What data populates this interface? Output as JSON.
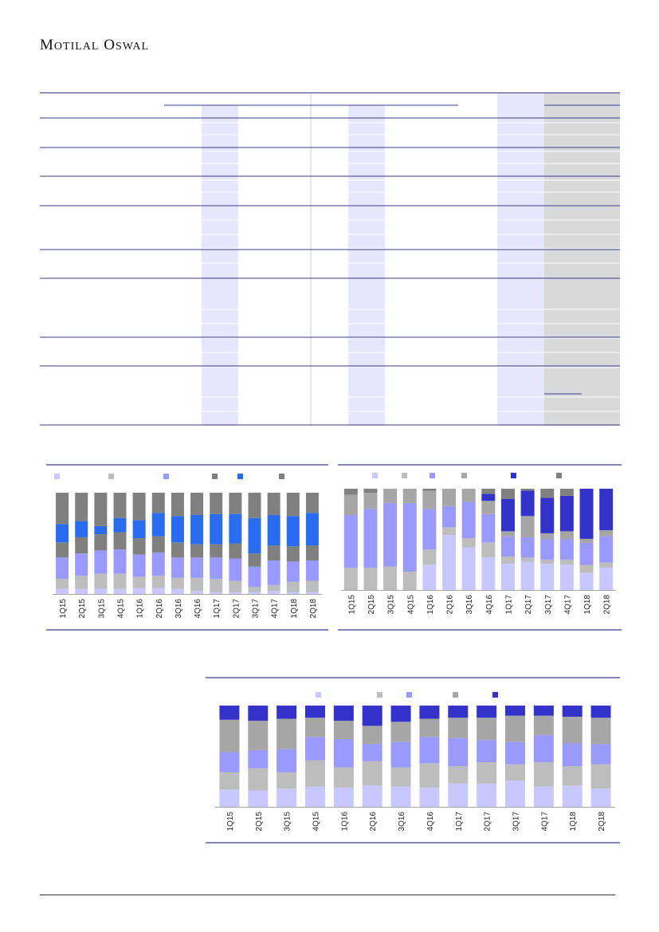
{
  "header": {
    "logo_word1": "Motilal",
    "logo_word2": "Oswal"
  },
  "table": {
    "row_count": 8
  },
  "colors": {
    "rule": "#3a3a8a",
    "band": "#e6e6ff",
    "shade": "#d9d9d9",
    "light_lavender": "#c8c8ff",
    "light_gray": "#bdbdbd",
    "periwinkle": "#9999ff",
    "mid_gray": "#a6a6a6",
    "royal_blue": "#2a6cf0",
    "dark_gray": "#808080",
    "indigo": "#3333cc"
  },
  "charts": [
    {
      "id": "chart-left",
      "categories": [
        "1Q15",
        "2Q15",
        "3Q15",
        "4Q15",
        "1Q16",
        "2Q16",
        "3Q16",
        "4Q16",
        "1Q17",
        "2Q17",
        "3Q17",
        "4Q17",
        "1Q18",
        "2Q18"
      ],
      "legend_colors": [
        "#c8c8ff",
        "#bdbdbd",
        "#9999ff",
        "#808080",
        "#2a6cf0",
        "#808080"
      ],
      "stack_colors": [
        "#c8c8ff",
        "#bdbdbd",
        "#9999ff",
        "#808080",
        "#2a6cf0",
        "#808080"
      ],
      "series": [
        [
          5,
          5,
          5,
          5,
          6,
          6,
          5,
          3,
          2,
          2,
          2,
          3,
          2,
          2
        ],
        [
          10,
          13,
          15,
          15,
          11,
          12,
          11,
          13,
          13,
          11,
          5,
          6,
          10,
          11
        ],
        [
          21,
          22,
          23,
          24,
          22,
          23,
          20,
          20,
          21,
          22,
          20,
          24,
          20,
          20
        ],
        [
          15,
          16,
          16,
          17,
          16,
          16,
          15,
          13,
          13,
          15,
          13,
          15,
          15,
          15
        ],
        [
          18,
          16,
          8,
          14,
          18,
          23,
          26,
          29,
          30,
          29,
          35,
          30,
          30,
          32
        ],
        [
          31,
          28,
          33,
          25,
          27,
          20,
          23,
          22,
          21,
          21,
          25,
          22,
          23,
          20
        ]
      ]
    },
    {
      "id": "chart-right",
      "categories": [
        "1Q15",
        "2Q15",
        "3Q15",
        "4Q15",
        "1Q16",
        "2Q16",
        "3Q16",
        "4Q16",
        "1Q17",
        "2Q17",
        "3Q17",
        "4Q17",
        "1Q18",
        "2Q18"
      ],
      "legend_colors": [
        "#c8c8ff",
        "#bdbdbd",
        "#9999ff",
        "#a6a6a6",
        "#3333cc",
        "#808080"
      ],
      "stack_colors": [
        "#c8c8ff",
        "#bdbdbd",
        "#9999ff",
        "#a6a6a6",
        "#3333cc",
        "#808080"
      ],
      "series": [
        [
          0,
          0,
          0,
          0,
          25,
          57,
          43,
          32,
          26,
          28,
          26,
          25,
          17,
          22
        ],
        [
          22,
          22,
          23,
          18,
          15,
          8,
          9,
          15,
          7,
          4,
          4,
          5,
          8,
          5
        ],
        [
          52,
          58,
          63,
          68,
          40,
          22,
          37,
          28,
          20,
          20,
          20,
          20,
          22,
          26
        ],
        [
          20,
          16,
          14,
          14,
          18,
          18,
          13,
          13,
          5,
          21,
          6,
          8,
          4,
          6
        ],
        [
          0,
          0,
          0,
          0,
          0,
          0,
          0,
          7,
          32,
          25,
          35,
          35,
          50,
          41
        ],
        [
          6,
          4,
          0,
          0,
          2,
          0,
          0,
          5,
          10,
          2,
          9,
          7,
          0,
          0
        ]
      ]
    },
    {
      "id": "chart-bottom",
      "categories": [
        "1Q15",
        "2Q15",
        "3Q15",
        "4Q15",
        "1Q16",
        "2Q16",
        "3Q16",
        "4Q16",
        "1Q17",
        "2Q17",
        "3Q17",
        "4Q17",
        "1Q18",
        "2Q18"
      ],
      "legend_colors": [
        "#c8c8ff",
        "#bdbdbd",
        "#9999ff",
        "#a6a6a6",
        "#3333cc"
      ],
      "stack_colors": [
        "#c8c8ff",
        "#bdbdbd",
        "#9999ff",
        "#a6a6a6",
        "#3333cc"
      ],
      "series": [
        [
          17,
          16,
          18,
          20,
          19,
          21,
          20,
          19,
          23,
          23,
          26,
          20,
          21,
          18
        ],
        [
          17,
          22,
          16,
          26,
          20,
          24,
          19,
          24,
          17,
          21,
          16,
          24,
          19,
          24
        ],
        [
          20,
          18,
          23,
          23,
          28,
          17,
          25,
          26,
          28,
          22,
          22,
          27,
          23,
          20
        ],
        [
          32,
          29,
          30,
          19,
          18,
          18,
          20,
          18,
          20,
          22,
          26,
          19,
          26,
          26
        ],
        [
          14,
          15,
          13,
          12,
          15,
          20,
          16,
          13,
          12,
          12,
          10,
          10,
          11,
          12
        ]
      ]
    }
  ]
}
